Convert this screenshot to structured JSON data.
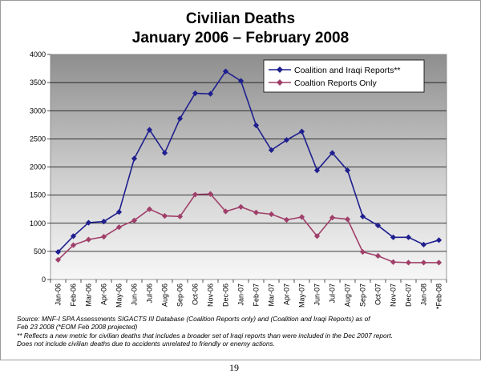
{
  "chart_data": {
    "type": "line",
    "title": [
      "Civilian Deaths",
      "January 2006 – February 2008"
    ],
    "categories": [
      "Jan-06",
      "Feb-06",
      "Mar-06",
      "Apr-06",
      "May-06",
      "Jun-06",
      "Jul-06",
      "Aug-06",
      "Sep-06",
      "Oct-06",
      "Nov-06",
      "Dec-06",
      "Jan-07",
      "Feb-07",
      "Mar-07",
      "Apr-07",
      "May-07",
      "Jun-07",
      "Jul-07",
      "Aug-07",
      "Sep-07",
      "Oct-07",
      "Nov-07",
      "Dec-07",
      "Jan-08",
      "*Feb-08"
    ],
    "ylim": [
      0,
      4000
    ],
    "yticks": [
      "0",
      "500",
      "1000",
      "1500",
      "2000",
      "2500",
      "3000",
      "3500",
      "4000"
    ],
    "grid": true,
    "legend_position": "top-right",
    "series": [
      {
        "name": "Coalition and Iraqi Reports**",
        "color": "#1f1f8f",
        "marker": "diamond",
        "values": [
          490,
          770,
          1010,
          1030,
          1200,
          2150,
          2660,
          2250,
          2860,
          3310,
          3300,
          3700,
          3530,
          2740,
          2300,
          2480,
          2630,
          1940,
          2250,
          1940,
          1120,
          960,
          750,
          750,
          620,
          700
        ]
      },
      {
        "name": "Coaltion Reports Only",
        "color": "#a0406a",
        "marker": "diamond",
        "values": [
          350,
          610,
          710,
          760,
          930,
          1050,
          1250,
          1130,
          1120,
          1510,
          1520,
          1210,
          1290,
          1190,
          1160,
          1060,
          1110,
          770,
          1100,
          1070,
          490,
          420,
          310,
          300,
          300,
          300
        ]
      }
    ]
  },
  "notes": [
    "Source:  MNF-I SPA Assessments SIGACTS III Database (Coalition Reports only) and (Coalition and Iraqi Reports) as of",
    "Feb 23 2008   (*EOM Feb 2008 projected)",
    "** Reflects a new metric for civilian deaths that includes a broader set of Iraqi reports than were included in the Dec 2007 report.",
    "Does not include civilian deaths due to accidents unrelated to friendly or enemy actions."
  ],
  "page_number": "19"
}
